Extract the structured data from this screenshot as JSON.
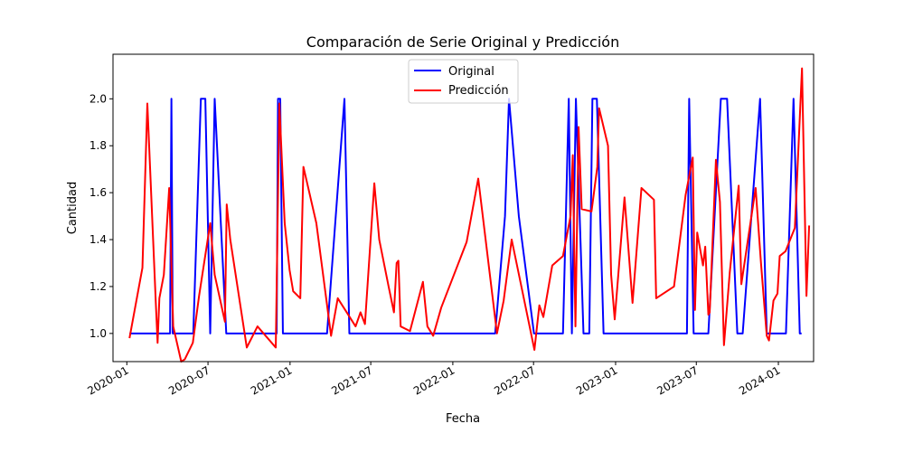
{
  "chart_data": {
    "type": "line",
    "title": "Comparación de Serie Original y Predicción",
    "xlabel": "Fecha",
    "ylabel": "Cantidad",
    "xlim": [
      "2019-12-01",
      "2024-03-20"
    ],
    "ylim": [
      0.88,
      2.19
    ],
    "grid": false,
    "legend_position": "top-center",
    "x_ticks": [
      "2020-01",
      "2020-07",
      "2021-01",
      "2021-07",
      "2022-01",
      "2022-07",
      "2023-01",
      "2023-07",
      "2024-01"
    ],
    "y_ticks": [
      "1.0",
      "1.2",
      "1.4",
      "1.6",
      "1.8",
      "2.0"
    ],
    "series": [
      {
        "name": "Original",
        "color": "#0000ff",
        "points": [
          [
            "2020-01-07",
            1.0
          ],
          [
            "2020-04-07",
            1.0
          ],
          [
            "2020-04-10",
            2.0
          ],
          [
            "2020-04-13",
            1.0
          ],
          [
            "2020-05-29",
            1.0
          ],
          [
            "2020-06-15",
            2.0
          ],
          [
            "2020-06-25",
            2.0
          ],
          [
            "2020-07-06",
            1.0
          ],
          [
            "2020-07-16",
            2.0
          ],
          [
            "2020-08-11",
            1.0
          ],
          [
            "2020-12-02",
            1.0
          ],
          [
            "2020-12-05",
            2.0
          ],
          [
            "2020-12-10",
            2.0
          ],
          [
            "2020-12-16",
            1.0
          ],
          [
            "2021-03-25",
            1.0
          ],
          [
            "2021-05-03",
            2.0
          ],
          [
            "2021-05-14",
            1.0
          ],
          [
            "2022-04-06",
            1.0
          ],
          [
            "2022-04-28",
            1.5
          ],
          [
            "2022-05-07",
            2.0
          ],
          [
            "2022-05-29",
            1.5
          ],
          [
            "2022-07-02",
            1.0
          ],
          [
            "2022-09-05",
            1.0
          ],
          [
            "2022-09-18",
            2.0
          ],
          [
            "2022-09-25",
            1.0
          ],
          [
            "2022-10-04",
            2.0
          ],
          [
            "2022-10-21",
            1.0
          ],
          [
            "2022-11-03",
            1.0
          ],
          [
            "2022-11-10",
            2.0
          ],
          [
            "2022-11-20",
            2.0
          ],
          [
            "2022-12-05",
            1.0
          ],
          [
            "2023-06-10",
            1.0
          ],
          [
            "2023-06-15",
            2.0
          ],
          [
            "2023-06-25",
            1.0
          ],
          [
            "2023-07-28",
            1.0
          ],
          [
            "2023-08-25",
            2.0
          ],
          [
            "2023-09-08",
            2.0
          ],
          [
            "2023-10-01",
            1.0
          ],
          [
            "2023-10-13",
            1.0
          ],
          [
            "2023-11-21",
            2.0
          ],
          [
            "2023-12-06",
            1.0
          ],
          [
            "2024-01-18",
            1.0
          ],
          [
            "2024-02-04",
            2.0
          ],
          [
            "2024-02-18",
            1.0
          ],
          [
            "2024-02-22",
            1.0
          ]
        ]
      },
      {
        "name": "Predicción",
        "color": "#ff0000",
        "points": [
          [
            "2020-01-07",
            0.98
          ],
          [
            "2020-02-05",
            1.28
          ],
          [
            "2020-02-16",
            1.98
          ],
          [
            "2020-03-06",
            1.13
          ],
          [
            "2020-03-10",
            0.96
          ],
          [
            "2020-03-14",
            1.15
          ],
          [
            "2020-03-24",
            1.25
          ],
          [
            "2020-04-05",
            1.62
          ],
          [
            "2020-04-14",
            1.03
          ],
          [
            "2020-05-02",
            0.88
          ],
          [
            "2020-05-10",
            0.89
          ],
          [
            "2020-05-28",
            0.96
          ],
          [
            "2020-06-11",
            1.16
          ],
          [
            "2020-07-06",
            1.47
          ],
          [
            "2020-07-16",
            1.25
          ],
          [
            "2020-08-08",
            1.05
          ],
          [
            "2020-08-12",
            1.55
          ],
          [
            "2020-08-20",
            1.4
          ],
          [
            "2020-09-26",
            0.94
          ],
          [
            "2020-10-20",
            1.03
          ],
          [
            "2020-11-30",
            0.94
          ],
          [
            "2020-12-08",
            1.98
          ],
          [
            "2020-12-20",
            1.47
          ],
          [
            "2020-12-31",
            1.27
          ],
          [
            "2021-01-08",
            1.18
          ],
          [
            "2021-01-24",
            1.15
          ],
          [
            "2021-01-31",
            1.71
          ],
          [
            "2021-03-01",
            1.47
          ],
          [
            "2021-04-03",
            0.99
          ],
          [
            "2021-04-18",
            1.15
          ],
          [
            "2021-05-28",
            1.03
          ],
          [
            "2021-06-08",
            1.09
          ],
          [
            "2021-06-18",
            1.04
          ],
          [
            "2021-07-09",
            1.64
          ],
          [
            "2021-07-20",
            1.4
          ],
          [
            "2021-08-10",
            1.2
          ],
          [
            "2021-08-22",
            1.09
          ],
          [
            "2021-08-28",
            1.3
          ],
          [
            "2021-09-01",
            1.31
          ],
          [
            "2021-09-06",
            1.03
          ],
          [
            "2021-09-27",
            1.01
          ],
          [
            "2021-10-26",
            1.22
          ],
          [
            "2021-11-05",
            1.03
          ],
          [
            "2021-11-18",
            0.99
          ],
          [
            "2021-12-06",
            1.11
          ],
          [
            "2022-02-01",
            1.39
          ],
          [
            "2022-02-27",
            1.66
          ],
          [
            "2022-04-10",
            1.0
          ],
          [
            "2022-04-25",
            1.14
          ],
          [
            "2022-05-13",
            1.4
          ],
          [
            "2022-06-07",
            1.17
          ],
          [
            "2022-07-03",
            0.93
          ],
          [
            "2022-07-14",
            1.12
          ],
          [
            "2022-07-23",
            1.07
          ],
          [
            "2022-08-12",
            1.29
          ],
          [
            "2022-09-05",
            1.33
          ],
          [
            "2022-09-22",
            1.5
          ],
          [
            "2022-09-27",
            1.76
          ],
          [
            "2022-10-03",
            1.03
          ],
          [
            "2022-10-10",
            1.88
          ],
          [
            "2022-10-17",
            1.53
          ],
          [
            "2022-11-08",
            1.52
          ],
          [
            "2022-11-21",
            1.71
          ],
          [
            "2022-11-25",
            1.96
          ],
          [
            "2022-12-15",
            1.8
          ],
          [
            "2022-12-22",
            1.25
          ],
          [
            "2022-12-30",
            1.06
          ],
          [
            "2023-01-21",
            1.58
          ],
          [
            "2023-02-08",
            1.13
          ],
          [
            "2023-02-28",
            1.62
          ],
          [
            "2023-03-28",
            1.57
          ],
          [
            "2023-04-02",
            1.15
          ],
          [
            "2023-05-12",
            1.2
          ],
          [
            "2023-06-07",
            1.59
          ],
          [
            "2023-06-23",
            1.75
          ],
          [
            "2023-06-28",
            1.1
          ],
          [
            "2023-07-03",
            1.43
          ],
          [
            "2023-07-16",
            1.29
          ],
          [
            "2023-07-21",
            1.37
          ],
          [
            "2023-07-28",
            1.08
          ],
          [
            "2023-07-31",
            1.09
          ],
          [
            "2023-08-14",
            1.74
          ],
          [
            "2023-08-23",
            1.56
          ],
          [
            "2023-09-01",
            0.95
          ],
          [
            "2023-09-14",
            1.26
          ],
          [
            "2023-10-04",
            1.63
          ],
          [
            "2023-10-10",
            1.21
          ],
          [
            "2023-11-11",
            1.62
          ],
          [
            "2023-11-23",
            1.3
          ],
          [
            "2023-12-06",
            0.99
          ],
          [
            "2023-12-11",
            0.97
          ],
          [
            "2023-12-21",
            1.14
          ],
          [
            "2023-12-30",
            1.17
          ],
          [
            "2024-01-04",
            1.33
          ],
          [
            "2024-01-17",
            1.35
          ],
          [
            "2024-02-07",
            1.45
          ],
          [
            "2024-02-23",
            2.13
          ],
          [
            "2024-03-04",
            1.16
          ],
          [
            "2024-03-10",
            1.46
          ]
        ]
      }
    ]
  }
}
